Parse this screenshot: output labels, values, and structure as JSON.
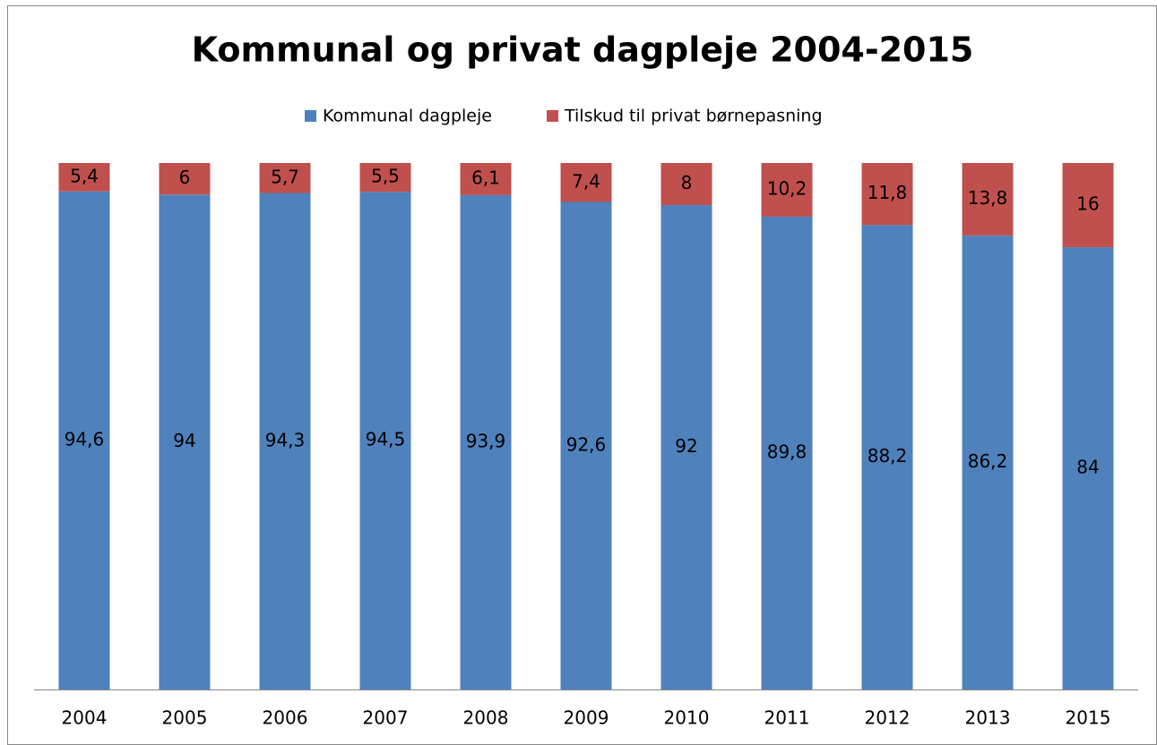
{
  "chart_data": {
    "type": "stacked_bar",
    "title": "Kommunal og privat dagpleje 2004-2015",
    "categories": [
      "2004",
      "2005",
      "2006",
      "2007",
      "2008",
      "2009",
      "2010",
      "2011",
      "2012",
      "2013",
      "2015"
    ],
    "series": [
      {
        "name": "Kommunal dagpleje",
        "color": "#4f81bd",
        "values": [
          94.6,
          94,
          94.3,
          94.5,
          93.9,
          92.6,
          92,
          89.8,
          88.2,
          86.2,
          84
        ],
        "value_labels": [
          "94,6",
          "94",
          "94,3",
          "94,5",
          "93,9",
          "92,6",
          "92",
          "89,8",
          "88,2",
          "86,2",
          "84"
        ]
      },
      {
        "name": "Tilskud til privat børnepasning",
        "color": "#c0504d",
        "values": [
          5.4,
          6,
          5.7,
          5.5,
          6.1,
          7.4,
          8,
          10.2,
          11.8,
          13.8,
          16
        ],
        "value_labels": [
          "5,4",
          "6",
          "5,7",
          "5,5",
          "6,1",
          "7,4",
          "8",
          "10,2",
          "11,8",
          "13,8",
          "16"
        ]
      }
    ],
    "ylim": [
      0,
      100
    ],
    "legend": "top"
  }
}
